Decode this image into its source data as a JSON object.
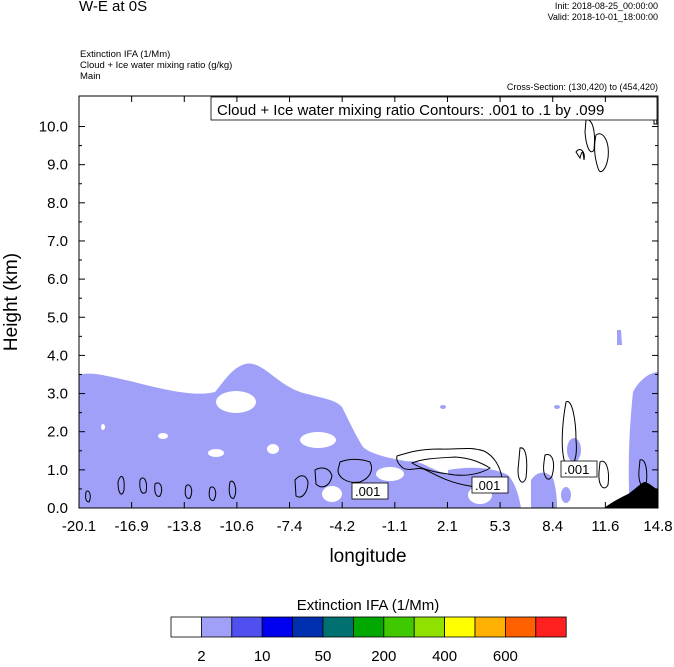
{
  "header": {
    "title": "W-E at 0S",
    "init": "Init: 2018-08-25_00:00:00",
    "valid": "Valid: 2018-10-01_18:00:00",
    "field1": "Extinction IFA   (1/Mm)",
    "field2": "Cloud + Ice water mixing ratio   (g/kg)",
    "field3": "Main",
    "cross_section": "Cross-Section: (130,420)  to  (454,420)"
  },
  "chart_data": {
    "type": "heatmap",
    "title": "W-E at 0S",
    "xlabel": "longitude",
    "ylabel": "Height (km)",
    "x_ticks": [
      "-20.1",
      "-16.9",
      "-13.8",
      "-10.6",
      "-7.4",
      "-4.2",
      "-1.1",
      "2.1",
      "5.3",
      "8.4",
      "11.6",
      "14.8"
    ],
    "y_ticks": [
      "0.0",
      "1.0",
      "2.0",
      "3.0",
      "4.0",
      "5.0",
      "6.0",
      "7.0",
      "8.0",
      "9.0",
      "10.0"
    ],
    "xlim": [
      -20.1,
      14.8
    ],
    "ylim": [
      0,
      10.8
    ],
    "contour_note": "Cloud + Ice water mixing ratio Contours: .001 to .1 by .099",
    "contour_labels": [
      ".001",
      ".001",
      ".001"
    ],
    "colorbar": {
      "title": "Extinction IFA  (1/Mm)",
      "tick_labels": [
        "2",
        "10",
        "50",
        "200",
        "400",
        "600"
      ],
      "colors": [
        "#ffffff",
        "#a0a0f8",
        "#5050f0",
        "#0000f0",
        "#0030b0",
        "#007070",
        "#00a800",
        "#40c800",
        "#90e000",
        "#ffff00",
        "#ffb000",
        "#ff6000",
        "#ff2020"
      ]
    },
    "fill_color": "#a0a0f8",
    "terrain_color": "#000000"
  }
}
